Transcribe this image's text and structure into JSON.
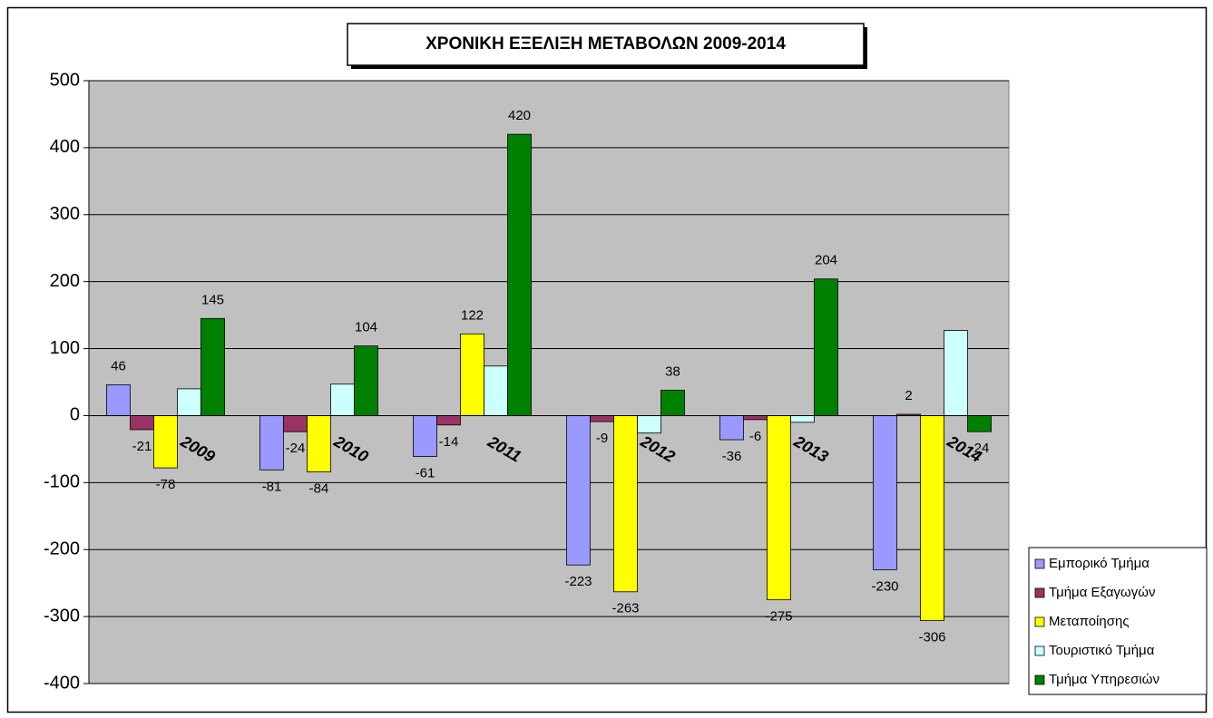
{
  "chart_data": {
    "type": "bar",
    "title": "ΧΡΟΝΙΚΗ ΕΞΕΛΙΞΗ ΜΕΤΑΒΟΛΩΝ 2009-2014",
    "categories": [
      "2009",
      "2010",
      "2011",
      "2012",
      "2013",
      "2014"
    ],
    "series": [
      {
        "name": "Εμπορικό Τμήμα",
        "color": "#9999ff",
        "values": [
          46,
          -81,
          -61,
          -223,
          -36,
          -230
        ],
        "labels": true
      },
      {
        "name": "Τμήμα Εξαγωγών",
        "color": "#993366",
        "values": [
          -21,
          -24,
          -14,
          -9,
          -6,
          2
        ],
        "labels": true
      },
      {
        "name": "Μεταποίησης",
        "color": "#ffff00",
        "values": [
          -78,
          -84,
          122,
          -263,
          -275,
          -306
        ],
        "labels": true
      },
      {
        "name": "Τουριστικό Τμήμα",
        "color": "#ccffff",
        "values": [
          40,
          47,
          74,
          -26,
          -10,
          127
        ],
        "labels": false
      },
      {
        "name": "Τμήμα Υπηρεσιών",
        "color": "#008000",
        "values": [
          145,
          104,
          420,
          38,
          204,
          -24
        ],
        "labels": true
      }
    ],
    "ylim": [
      -400,
      500
    ],
    "yticks": [
      -400,
      -300,
      -200,
      -100,
      0,
      100,
      200,
      300,
      400,
      500
    ],
    "grid": true,
    "legend": "bottom-right",
    "plot_background": "#c0c0c0"
  }
}
